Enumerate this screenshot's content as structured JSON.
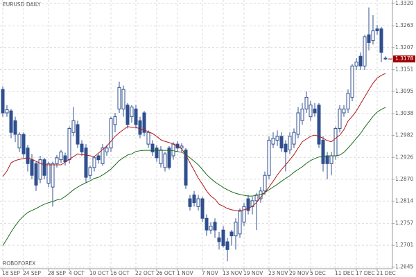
{
  "chart_data": {
    "type": "candlestick",
    "title": "EURUSD DAILY",
    "watermark": "ROBOFOREX",
    "categories": [
      "18 SEP",
      null,
      null,
      null,
      null,
      "24 SEP",
      null,
      null,
      null,
      null,
      null,
      "28 SEP",
      null,
      null,
      null,
      null,
      "4 OCT",
      null,
      null,
      null,
      null,
      "10 OCT",
      null,
      null,
      null,
      null,
      "16 OCT",
      null,
      null,
      null,
      null,
      null,
      "22 OCT",
      null,
      null,
      null,
      null,
      "26 OCT",
      null,
      null,
      null,
      null,
      "1 NOV",
      null,
      null,
      null,
      null,
      null,
      "7 NOV",
      null,
      null,
      null,
      null,
      "13 NOV",
      null,
      null,
      null,
      null,
      "19 NOV",
      null,
      null,
      null,
      null,
      null,
      "23 NOV",
      null,
      null,
      null,
      null,
      "29 NOV",
      null,
      null,
      null,
      null,
      "5 DEC",
      null,
      null,
      null,
      null,
      null,
      "11 DEC",
      null,
      null,
      null,
      null,
      "17 DEC",
      null,
      null,
      null,
      null,
      "21 DEC",
      null,
      null
    ],
    "open": [
      1.31,
      1.304,
      1.3045,
      1.302,
      1.295,
      1.2985,
      1.295,
      1.292,
      1.291,
      1.287,
      1.292,
      1.286,
      1.285,
      1.291,
      1.292,
      1.293,
      1.292,
      1.299,
      1.301,
      1.296,
      1.295,
      1.288,
      1.29,
      1.293,
      1.291,
      1.294,
      1.295,
      1.301,
      1.305,
      1.305,
      1.306,
      1.303,
      1.305,
      1.302,
      1.304,
      1.296,
      1.296,
      1.295,
      1.291,
      1.29,
      1.295,
      1.293,
      1.296,
      1.295,
      1.2945,
      1.282,
      1.283,
      1.28,
      1.282,
      1.277,
      1.274,
      1.276,
      1.272,
      1.274,
      1.271,
      1.2735,
      1.2725,
      1.273,
      1.276,
      1.282,
      1.28,
      1.2815,
      1.282,
      1.284,
      1.288,
      1.296,
      1.297,
      1.298,
      1.296,
      1.2945,
      1.296,
      1.2985,
      1.302,
      1.305,
      1.303,
      1.305,
      1.306,
      1.297,
      1.293,
      1.291,
      1.293,
      1.3,
      1.304,
      1.305,
      1.308,
      1.316,
      1.3185,
      1.316,
      1.324,
      1.3225,
      1.3255,
      1.3255,
      1.318
    ],
    "high": [
      1.3108,
      1.306,
      1.305,
      1.303,
      1.299,
      1.299,
      1.2958,
      1.2935,
      1.2915,
      1.293,
      1.2925,
      1.2915,
      1.2915,
      1.2932,
      1.2945,
      1.2938,
      1.3005,
      1.3055,
      1.302,
      1.297,
      1.296,
      1.2905,
      1.293,
      1.2935,
      1.296,
      1.2958,
      1.303,
      1.304,
      1.312,
      1.311,
      1.3065,
      1.306,
      1.306,
      1.303,
      1.3045,
      1.2995,
      1.297,
      1.2958,
      1.2955,
      1.294,
      1.2955,
      1.2965,
      1.2968,
      1.2962,
      1.295,
      1.283,
      1.284,
      1.283,
      1.2825,
      1.278,
      1.276,
      1.277,
      1.2735,
      1.275,
      1.272,
      1.274,
      1.277,
      1.2795,
      1.281,
      1.283,
      1.2825,
      1.2835,
      1.285,
      1.289,
      1.298,
      1.299,
      1.2995,
      1.299,
      1.297,
      1.299,
      1.3,
      1.3055,
      1.3065,
      1.3095,
      1.307,
      1.3065,
      1.3065,
      1.298,
      1.294,
      1.294,
      1.3005,
      1.306,
      1.306,
      1.31,
      1.3165,
      1.318,
      1.3195,
      1.324,
      1.331,
      1.329,
      1.3265,
      1.326,
      1.3185
    ],
    "low": [
      1.303,
      1.303,
      1.2975,
      1.2965,
      1.294,
      1.2925,
      1.289,
      1.287,
      1.284,
      1.286,
      1.287,
      1.285,
      1.28,
      1.29,
      1.2912,
      1.2905,
      1.291,
      1.298,
      1.295,
      1.293,
      1.286,
      1.287,
      1.289,
      1.291,
      1.2905,
      1.293,
      1.294,
      1.299,
      1.304,
      1.303,
      1.3,
      1.3015,
      1.3,
      1.2975,
      1.298,
      1.295,
      1.293,
      1.2915,
      1.29,
      1.289,
      1.2895,
      1.292,
      1.294,
      1.294,
      1.2845,
      1.279,
      1.28,
      1.279,
      1.276,
      1.2725,
      1.273,
      1.272,
      1.269,
      1.2695,
      1.266,
      1.27,
      1.269,
      1.272,
      1.275,
      1.278,
      1.278,
      1.274,
      1.281,
      1.283,
      1.287,
      1.295,
      1.2955,
      1.294,
      1.289,
      1.2935,
      1.295,
      1.2975,
      1.301,
      1.304,
      1.302,
      1.303,
      1.295,
      1.289,
      1.287,
      1.288,
      1.292,
      1.299,
      1.303,
      1.304,
      1.307,
      1.315,
      1.315,
      1.315,
      1.32,
      1.3215,
      1.324,
      1.317,
      1.3175
    ],
    "close": [
      1.304,
      1.3048,
      1.299,
      1.2985,
      1.2985,
      1.2935,
      1.291,
      1.288,
      1.2855,
      1.292,
      1.288,
      1.291,
      1.291,
      1.2925,
      1.294,
      1.2915,
      1.3,
      1.302,
      1.296,
      1.294,
      1.2875,
      1.29,
      1.2925,
      1.292,
      1.295,
      1.295,
      1.3025,
      1.303,
      1.3105,
      1.31,
      1.301,
      1.3055,
      1.301,
      1.2985,
      1.299,
      1.299,
      1.294,
      1.2925,
      1.2945,
      1.2935,
      1.29,
      1.296,
      1.295,
      1.2955,
      1.2855,
      1.28,
      1.281,
      1.282,
      1.277,
      1.274,
      1.275,
      1.274,
      1.271,
      1.27,
      1.269,
      1.2725,
      1.276,
      1.279,
      1.28,
      1.279,
      1.2815,
      1.283,
      1.284,
      1.288,
      1.297,
      1.2975,
      1.298,
      1.295,
      1.294,
      1.298,
      1.299,
      1.304,
      1.305,
      1.308,
      1.306,
      1.304,
      1.296,
      1.291,
      1.291,
      1.293,
      1.3,
      1.305,
      1.305,
      1.309,
      1.316,
      1.317,
      1.316,
      1.3235,
      1.322,
      1.325,
      1.325,
      1.3195,
      1.3178
    ],
    "up_color": "#ffffff",
    "down_color": "#2f4f8f",
    "edge_color": "#2f4f8f",
    "lines": [
      {
        "color": "#b01818",
        "values": [
          1.2877,
          1.2891,
          1.2912,
          1.2918,
          1.2921,
          1.2923,
          1.2925,
          1.2921,
          1.2916,
          1.2911,
          1.2907,
          1.2907,
          1.2907,
          1.2907,
          1.2907,
          1.2914,
          1.2921,
          1.2928,
          1.2935,
          1.2933,
          1.2932,
          1.293,
          1.2928,
          1.2937,
          1.2946,
          1.2955,
          1.2967,
          1.298,
          1.2989,
          1.2997,
          1.3005,
          1.3003,
          1.3003,
          1.2999,
          1.2996,
          1.2992,
          1.2987,
          1.298,
          1.2971,
          1.2967,
          1.2964,
          1.296,
          1.2955,
          1.2948,
          1.2932,
          1.2912,
          1.2893,
          1.2873,
          1.2857,
          1.284,
          1.2827,
          1.2819,
          1.2806,
          1.2801,
          1.2795,
          1.2792,
          1.279,
          1.2788,
          1.2792,
          1.2795,
          1.2801,
          1.281,
          1.2824,
          1.2836,
          1.285,
          1.2865,
          1.2881,
          1.2895,
          1.2907,
          1.292,
          1.2933,
          1.295,
          1.2966,
          1.2973,
          1.298,
          1.2983,
          1.298,
          1.2975,
          1.2969,
          1.2966,
          1.2975,
          1.2983,
          1.2997,
          1.3019,
          1.3031,
          1.3045,
          1.3063,
          1.3081,
          1.3099,
          1.3116,
          1.3129,
          1.3136,
          1.3141
        ]
      },
      {
        "color": "#1a6b1a",
        "values": [
          1.27,
          1.2717,
          1.2735,
          1.2751,
          1.2765,
          1.2776,
          1.2785,
          1.279,
          1.2795,
          1.2801,
          1.2806,
          1.281,
          1.2813,
          1.2817,
          1.2819,
          1.2826,
          1.2834,
          1.2843,
          1.285,
          1.2856,
          1.2861,
          1.2866,
          1.2872,
          1.2875,
          1.2881,
          1.2888,
          1.2896,
          1.2907,
          1.2918,
          1.2925,
          1.2932,
          1.2935,
          1.2941,
          1.2943,
          1.2944,
          1.2944,
          1.2944,
          1.2944,
          1.2944,
          1.2944,
          1.2944,
          1.2943,
          1.2941,
          1.2939,
          1.2934,
          1.2925,
          1.2916,
          1.2907,
          1.2895,
          1.2882,
          1.2872,
          1.2863,
          1.2856,
          1.2849,
          1.2843,
          1.2838,
          1.2834,
          1.2831,
          1.2829,
          1.2827,
          1.2827,
          1.2829,
          1.2831,
          1.2836,
          1.2843,
          1.285,
          1.2857,
          1.2865,
          1.2872,
          1.2879,
          1.2888,
          1.2895,
          1.2902,
          1.2911,
          1.2918,
          1.2923,
          1.2927,
          1.2928,
          1.293,
          1.293,
          1.293,
          1.2932,
          1.2939,
          1.295,
          1.2962,
          1.2975,
          1.2987,
          1.3003,
          1.3017,
          1.3031,
          1.3042,
          1.3049,
          1.3054
        ]
      }
    ],
    "ylim": [
      1.2641,
      1.3329
    ],
    "yticks": [
      {
        "value": 1.332,
        "label": "1.3320"
      },
      1.3263,
      1.3207,
      1.3151,
      1.3095,
      1.3038,
      1.2982,
      1.2926,
      {
        "value": 1.287,
        "label": "1.2870"
      },
      1.2814,
      1.2757,
      1.2701,
      1.2645
    ],
    "last_price": 1.3178,
    "last_price_color": "#a00000",
    "grid": true
  }
}
